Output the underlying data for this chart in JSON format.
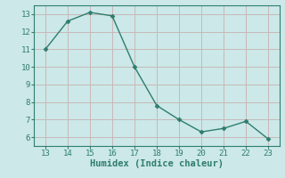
{
  "x": [
    13,
    14,
    15,
    16,
    17,
    18,
    19,
    20,
    21,
    22,
    23
  ],
  "y": [
    11.0,
    12.6,
    13.1,
    12.9,
    10.0,
    7.8,
    7.0,
    6.3,
    6.5,
    6.9,
    5.9
  ],
  "line_color": "#2e7d6e",
  "marker": "D",
  "marker_size": 2.5,
  "xlabel": "Humidex (Indice chaleur)",
  "xlim": [
    12.5,
    23.5
  ],
  "ylim": [
    5.5,
    13.5
  ],
  "xticks": [
    13,
    14,
    15,
    16,
    17,
    18,
    19,
    20,
    21,
    22,
    23
  ],
  "yticks": [
    6,
    7,
    8,
    9,
    10,
    11,
    12,
    13
  ],
  "bg_color": "#cce8e8",
  "grid_color": "#c8b8b8",
  "tick_fontsize": 6.5,
  "xlabel_fontsize": 7.5,
  "linewidth": 1.0
}
